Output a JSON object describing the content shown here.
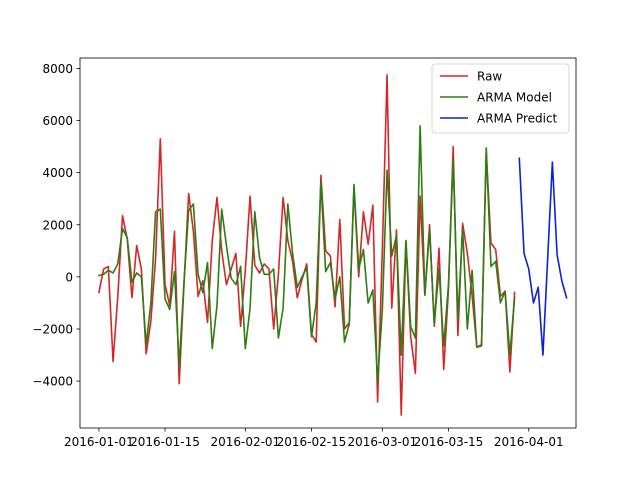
{
  "chart_data": {
    "type": "line",
    "title": "",
    "xlabel": "",
    "ylabel": "",
    "xlim": [
      "2015-12-28",
      "2016-04-11"
    ],
    "ylim": [
      -5800,
      8400
    ],
    "x_ticks": [
      {
        "date": "2016-01-01",
        "label": "2016-01-01"
      },
      {
        "date": "2016-01-15",
        "label": "2016-01-15"
      },
      {
        "date": "2016-02-01",
        "label": "2016-02-01"
      },
      {
        "date": "2016-02-15",
        "label": "2016-02-15"
      },
      {
        "date": "2016-03-01",
        "label": "2016-03-01"
      },
      {
        "date": "2016-03-15",
        "label": "2016-03-15"
      },
      {
        "date": "2016-04-01",
        "label": "2016-04-01"
      }
    ],
    "y_ticks": [
      {
        "value": -4000,
        "label": "−4000"
      },
      {
        "value": -2000,
        "label": "−2000"
      },
      {
        "value": 0,
        "label": "0"
      },
      {
        "value": 2000,
        "label": "2000"
      },
      {
        "value": 4000,
        "label": "4000"
      },
      {
        "value": 6000,
        "label": "6000"
      },
      {
        "value": 8000,
        "label": "8000"
      }
    ],
    "grid": false,
    "legend_position": "top-right",
    "series": [
      {
        "name": "Raw",
        "color": "#d62728",
        "start": "2016-01-01",
        "values": [
          -600,
          300,
          400,
          -3250,
          -750,
          2350,
          1450,
          -800,
          1200,
          300,
          -2950,
          -1700,
          700,
          5300,
          -300,
          -1100,
          1750,
          -4100,
          -350,
          3200,
          1750,
          -750,
          -150,
          -1750,
          1400,
          3050,
          1000,
          -300,
          300,
          900,
          -1900,
          250,
          3100,
          450,
          150,
          500,
          300,
          -2000,
          100,
          3050,
          1400,
          600,
          -800,
          -100,
          500,
          -2200,
          -2500,
          3900,
          1000,
          800,
          -1150,
          2200,
          -2000,
          -1750,
          3450,
          0,
          2500,
          1250,
          2750,
          -4800,
          1000,
          7750,
          -1200,
          1800,
          -5300,
          1350,
          -2300,
          -3700,
          3100,
          -700,
          2000,
          -1900,
          1100,
          -3550,
          -500,
          5000,
          -2250,
          2050,
          900,
          -700,
          -2700,
          -2650,
          4800,
          1300,
          1050,
          -750,
          -550,
          -3650,
          -600
        ],
        "values_note": "daily from start"
      },
      {
        "name": "ARMA Model",
        "color": "#2c7d13",
        "start": "2016-01-01",
        "values": [
          50,
          100,
          250,
          150,
          500,
          1850,
          1500,
          -200,
          150,
          0,
          -2600,
          -1000,
          2500,
          2600,
          -850,
          -1250,
          200,
          -3400,
          -250,
          2550,
          2800,
          100,
          -600,
          550,
          -2750,
          -1100,
          2600,
          1200,
          -50,
          -300,
          400,
          -2750,
          -1200,
          2500,
          750,
          100,
          100,
          300,
          -2350,
          -1200,
          2800,
          900,
          -400,
          0,
          350,
          -2300,
          -1000,
          3650,
          200,
          550,
          -850,
          0,
          -2500,
          -1800,
          3550,
          300,
          1050,
          -1000,
          -500,
          -4000,
          -1300,
          4100,
          800,
          1600,
          -3000,
          1400,
          -1900,
          -2350,
          5800,
          -700,
          1800,
          -1800,
          300,
          -2650,
          -300,
          4500,
          -1600,
          1850,
          -2000,
          250,
          -2700,
          -2600,
          4950,
          400,
          600,
          -1000,
          -550,
          -3000,
          -800
        ],
        "values_note": "daily from start"
      },
      {
        "name": "ARMA Predict",
        "color": "#0a22d6",
        "start": "2016-03-30",
        "values": [
          4550,
          900,
          300,
          -1000,
          -400,
          -3000,
          700,
          4400,
          850,
          -150,
          -800
        ],
        "values_note": "daily from start"
      }
    ]
  }
}
